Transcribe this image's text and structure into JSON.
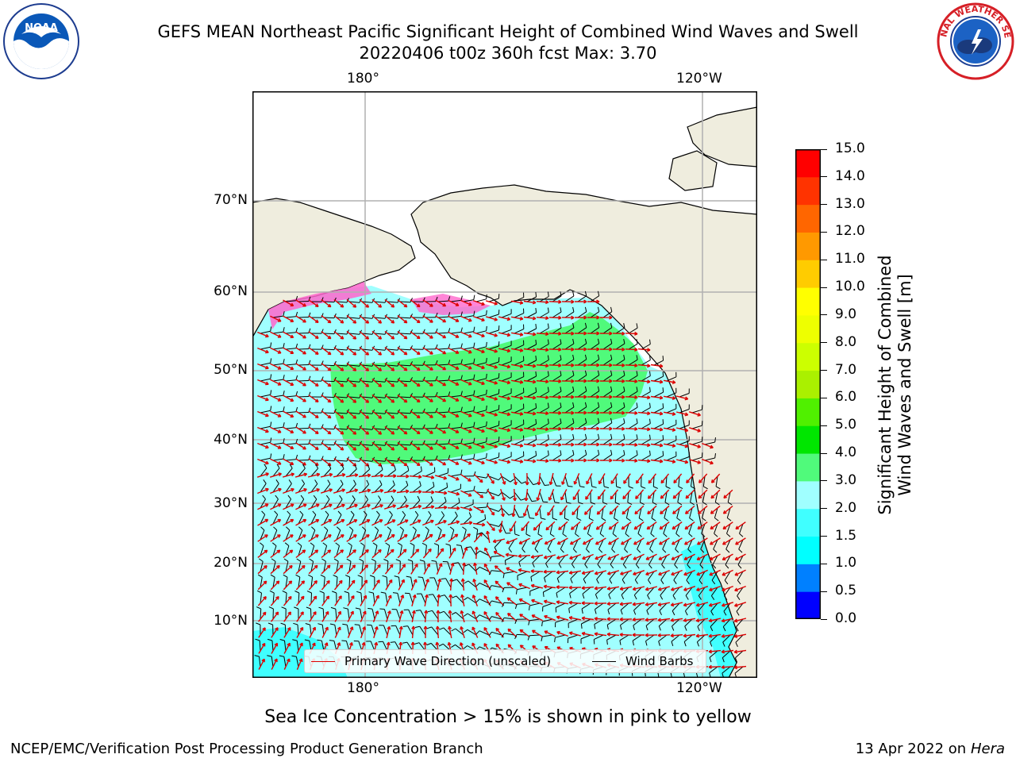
{
  "title_line1": "GEFS MEAN Northeast Pacific Significant Height of Combined Wind Waves and Swell",
  "title_line2": "20220406 t00z 360h fcst   Max: 3.70",
  "logos": {
    "left": "noaa-logo",
    "right": "national-weather-service-logo",
    "left_text": "NOAA",
    "right_text": "NATIONAL WEATHER SERVICE"
  },
  "lon_labels": [
    "180°",
    "120°W"
  ],
  "lat_labels": [
    "70°N",
    "60°N",
    "50°N",
    "40°N",
    "30°N",
    "20°N",
    "10°N"
  ],
  "colorbar": {
    "ticks": [
      "15.0",
      "14.0",
      "13.0",
      "12.0",
      "11.0",
      "10.0",
      "9.0",
      "8.0",
      "7.0",
      "6.0",
      "5.0",
      "4.0",
      "3.0",
      "2.0",
      "1.5",
      "1.0",
      "0.5",
      "0.0"
    ],
    "colors": [
      "#0000ff",
      "#0080ff",
      "#00ffff",
      "#40ffff",
      "#a0ffff",
      "#50fa7b",
      "#00e600",
      "#50f000",
      "#aaf000",
      "#ccff00",
      "#eeff00",
      "#ffff00",
      "#ffcc00",
      "#ff9900",
      "#ff6600",
      "#ff3300",
      "#ff0000"
    ],
    "title_line1": "Significant Height of Combined",
    "title_line2": "Wind Waves and Swell [m]"
  },
  "legend": {
    "wave_label": "Primary Wave Direction (unscaled)",
    "wind_label": "Wind Barbs",
    "wave_color": "#dd0000",
    "wind_color": "#000000"
  },
  "colors": {
    "land": "#efedde",
    "sea_low": "#a0ffff",
    "sea_mid": "#50fa7b",
    "sea_cyan": "#40ffff",
    "grid": "#b0b0b0"
  },
  "footnote": "Sea Ice Concentration > 15% is shown in pink to yellow",
  "footer_left": "NCEP/EMC/Verification Post Processing Product Generation Branch",
  "footer_right_prefix": "13 Apr 2022 on",
  "footer_right_host": "Hera"
}
